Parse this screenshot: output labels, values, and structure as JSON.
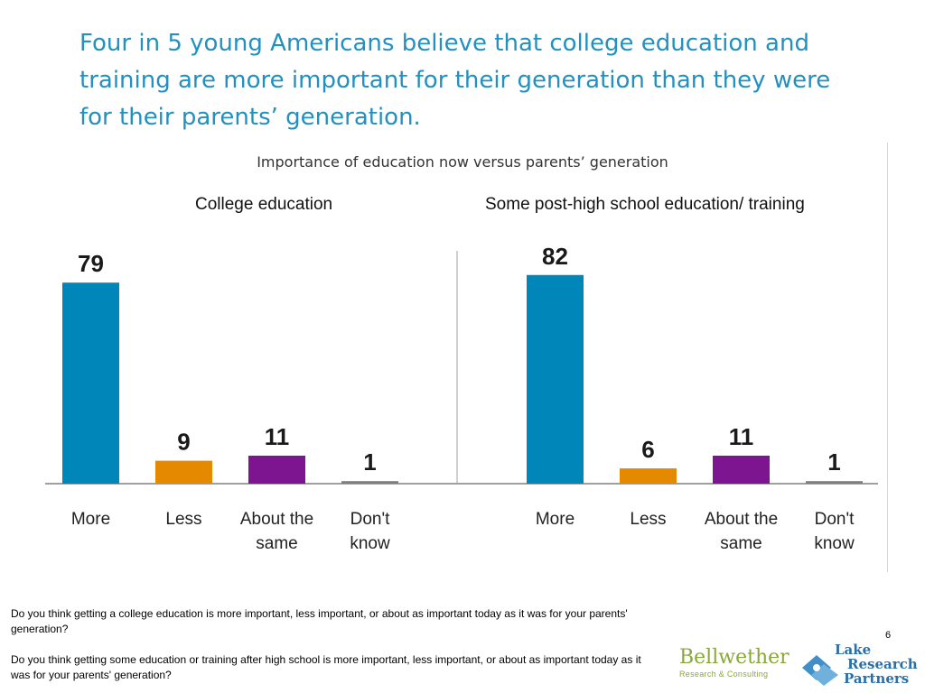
{
  "headline": "Four in 5 young Americans believe that college education and training are more important for their generation than they were for their parents’ generation.",
  "page_number": "6",
  "footnotes": [
    "Do you think getting a college education is more important, less important, or about as important today as it was for your parents' generation?",
    "Do you think getting some education or training after high school is more important, less important, or about as important today as it was for your parents' generation?"
  ],
  "logos": {
    "bellwether_name": "Bellwether",
    "bellwether_tagline": "Research & Consulting",
    "lake_line1": "Lake",
    "lake_line2": "Research",
    "lake_line3": "Partners"
  },
  "colors": {
    "More": "#0086b9",
    "Less": "#e58a00",
    "About the same": "#7d1590",
    "Don't know": "#7f7f7f",
    "headline": "#2290c0"
  },
  "chart_data": [
    {
      "type": "bar",
      "title": "Importance of education now versus parents’ generation",
      "subtitle": "College education",
      "categories": [
        "More",
        "Less",
        "About the same",
        "Don't know"
      ],
      "values": [
        79,
        9,
        11,
        1
      ],
      "ylim": [
        0,
        100
      ],
      "grid": false,
      "legend": "none"
    },
    {
      "type": "bar",
      "title": "Importance of education now versus parents’ generation",
      "subtitle": "Some post-high school education/ training",
      "categories": [
        "More",
        "Less",
        "About the same",
        "Don't know"
      ],
      "values": [
        82,
        6,
        11,
        1
      ],
      "ylim": [
        0,
        100
      ],
      "grid": false,
      "legend": "none"
    }
  ]
}
